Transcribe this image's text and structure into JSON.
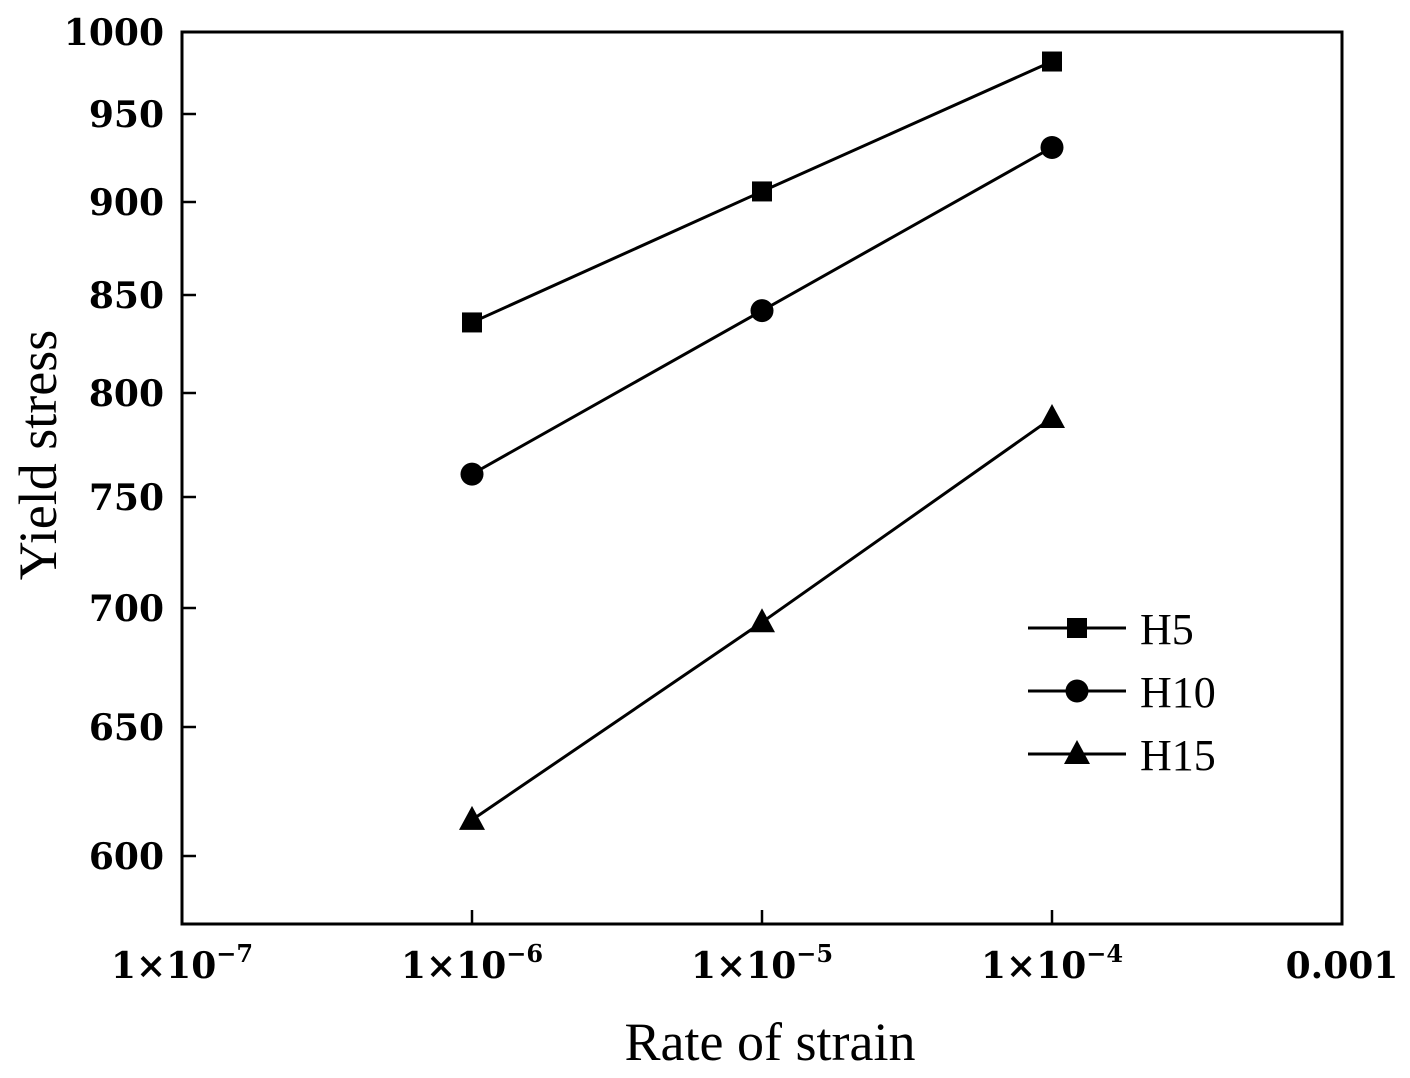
{
  "chart_data": {
    "type": "line",
    "xscale": "log",
    "x_tick_values": [
      1e-07,
      1e-06,
      1e-05,
      0.0001,
      0.001
    ],
    "x_tick_labels": [
      {
        "base": "1×10",
        "exp": "−7"
      },
      {
        "base": "1×10",
        "exp": "−6"
      },
      {
        "base": "1×10",
        "exp": "−5"
      },
      {
        "base": "1×10",
        "exp": "−4"
      },
      {
        "base": "0.001",
        "exp": ""
      }
    ],
    "xlim": [
      1e-07,
      0.001
    ],
    "y_tick_values": [
      600,
      650,
      700,
      750,
      800,
      850,
      900,
      950,
      1000
    ],
    "ylim": [
      580,
      1000
    ],
    "xlabel": "Rate of strain",
    "ylabel": "Yield stress",
    "grid": false,
    "legend_position": "bottom-right",
    "x": [
      1e-06,
      1e-05,
      0.0001
    ],
    "series": [
      {
        "name": "H5",
        "marker": "square",
        "color": "#000000",
        "values": [
          836,
          906,
          982
        ]
      },
      {
        "name": "H10",
        "marker": "circle",
        "color": "#000000",
        "values": [
          761,
          842,
          931
        ]
      },
      {
        "name": "H15",
        "marker": "triangle",
        "color": "#000000",
        "values": [
          614,
          694,
          788
        ]
      }
    ]
  }
}
